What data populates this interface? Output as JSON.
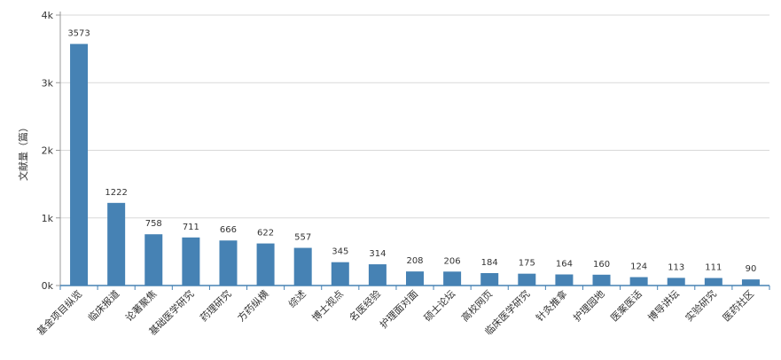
{
  "chart_data": {
    "type": "bar",
    "ylabel": "文献量（篇）",
    "ylim": [
      0,
      4000
    ],
    "yticks": [
      {
        "value": 0,
        "label": "0k"
      },
      {
        "value": 1000,
        "label": "1k"
      },
      {
        "value": 2000,
        "label": "2k"
      },
      {
        "value": 3000,
        "label": "3k"
      },
      {
        "value": 4000,
        "label": "4k"
      }
    ],
    "grid": true,
    "bar_color": "#4682b4",
    "categories": [
      "基金项目纵览",
      "临床报道",
      "论著聚焦",
      "基础医学研究",
      "药理研究",
      "方药纵横",
      "综述",
      "博士视点",
      "名医经验",
      "护理面对面",
      "硕士论坛",
      "高校网页",
      "临床医学研究",
      "针灸推拿",
      "护理园地",
      "医案医话",
      "博导讲坛",
      "实验研究",
      "医药社区"
    ],
    "values": [
      3573,
      1222,
      758,
      711,
      666,
      622,
      557,
      345,
      314,
      208,
      206,
      184,
      175,
      164,
      160,
      124,
      113,
      111,
      90
    ]
  }
}
